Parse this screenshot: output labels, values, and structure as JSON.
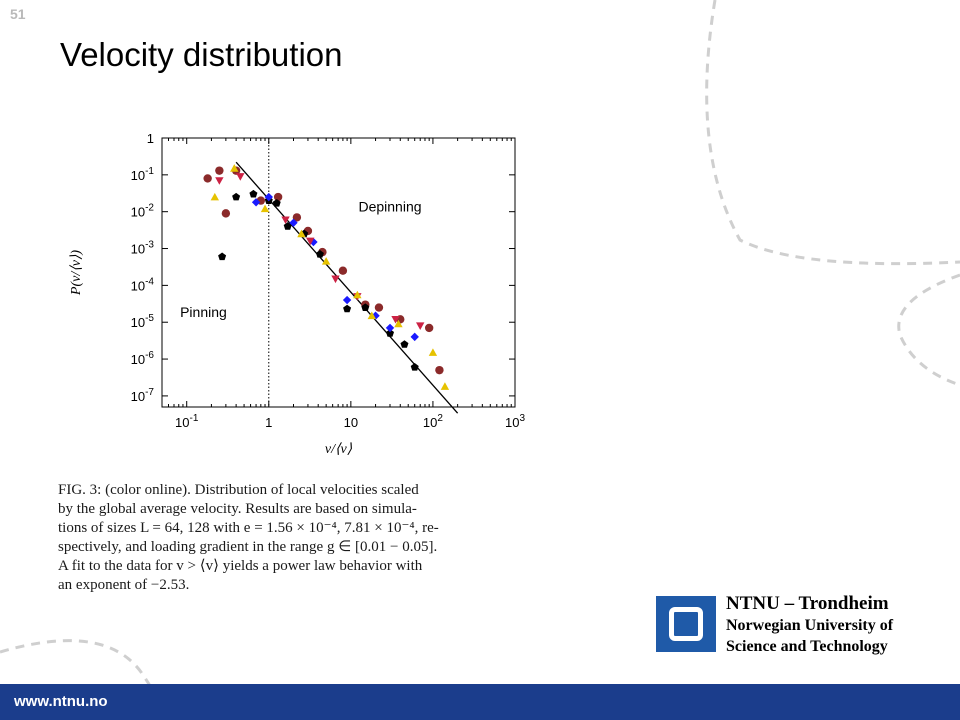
{
  "slide": {
    "page_number": "51",
    "title": "Velocity distribution",
    "footer_url": "www.ntnu.no"
  },
  "brand": {
    "line1": "NTNU – Trondheim",
    "line2": "Norwegian University of",
    "line3": "Science and Technology",
    "logo_color": "#1f5aa8",
    "footer_color": "#1b3d8c"
  },
  "caption": {
    "lines": [
      "FIG. 3: (color online). Distribution of local velocities scaled",
      "by the global average velocity. Results are based on simula-",
      "tions of sizes L = 64, 128 with e = 1.56 × 10⁻⁴, 7.81 × 10⁻⁴, re-",
      "spectively, and loading gradient in the range g ∈ [0.01 − 0.05].",
      "A fit to the data for v > ⟨v⟩ yields a power law behavior with",
      "an exponent of −2.53."
    ]
  },
  "chart_data": {
    "type": "scatter",
    "x_scale": "log",
    "y_scale": "log",
    "xlim": [
      0.05,
      1000
    ],
    "ylim": [
      5e-08,
      1
    ],
    "xlabel": "v/⟨v⟩",
    "ylabel": "P(v/⟨v⟩)",
    "x_ticks": [
      {
        "value": 0.1,
        "base": "10",
        "exp": "-1"
      },
      {
        "value": 1,
        "base": "1",
        "exp": ""
      },
      {
        "value": 10,
        "base": "10",
        "exp": ""
      },
      {
        "value": 100,
        "base": "10",
        "exp": "2"
      },
      {
        "value": 1000,
        "base": "10",
        "exp": "3"
      }
    ],
    "y_ticks": [
      {
        "value": 1,
        "base": "1",
        "exp": ""
      },
      {
        "value": 0.1,
        "base": "10",
        "exp": "-1"
      },
      {
        "value": 0.01,
        "base": "10",
        "exp": "-2"
      },
      {
        "value": 0.001,
        "base": "10",
        "exp": "-3"
      },
      {
        "value": 0.0001,
        "base": "10",
        "exp": "-4"
      },
      {
        "value": 1e-05,
        "base": "10",
        "exp": "-5"
      },
      {
        "value": 1e-06,
        "base": "10",
        "exp": "-6"
      },
      {
        "value": 1e-07,
        "base": "10",
        "exp": "-7"
      }
    ],
    "annotations": [
      {
        "text": "Depinning",
        "x": 30,
        "y": 0.01
      },
      {
        "text": "Pinning",
        "x": 0.16,
        "y": 1.4e-05
      }
    ],
    "vline": {
      "x": 1,
      "style": "dotted"
    },
    "fit": {
      "slope": -2.53,
      "x": [
        0.4,
        200
      ],
      "y": [
        0.22,
        3.39e-08
      ]
    },
    "series": [
      {
        "marker": "circle",
        "color": "#8b2a2a",
        "points": [
          [
            0.18,
            0.08
          ],
          [
            0.25,
            0.13
          ],
          [
            0.3,
            0.009
          ],
          [
            0.4,
            0.13
          ],
          [
            0.8,
            0.02
          ],
          [
            1.3,
            0.025
          ],
          [
            2.2,
            0.007
          ],
          [
            3.0,
            0.003
          ],
          [
            4.5,
            0.0008
          ],
          [
            8,
            0.00025
          ],
          [
            15,
            3e-05
          ],
          [
            22,
            2.5e-05
          ],
          [
            40,
            1.2e-05
          ],
          [
            90,
            7e-06
          ],
          [
            120,
            5e-07
          ]
        ]
      },
      {
        "marker": "pentagon",
        "color": "#000000",
        "points": [
          [
            0.27,
            0.0006
          ],
          [
            0.4,
            0.025
          ],
          [
            0.65,
            0.03
          ],
          [
            1.0,
            0.02
          ],
          [
            1.25,
            0.017
          ],
          [
            1.7,
            0.004
          ],
          [
            2.7,
            0.0025
          ],
          [
            4.2,
            0.0007
          ],
          [
            9,
            2.3e-05
          ],
          [
            15,
            2.5e-05
          ],
          [
            30,
            5e-06
          ],
          [
            45,
            2.5e-06
          ],
          [
            60,
            6e-07
          ]
        ]
      },
      {
        "marker": "diamond",
        "color": "#1a1aff",
        "points": [
          [
            0.7,
            0.018
          ],
          [
            1.0,
            0.025
          ],
          [
            2.0,
            0.005
          ],
          [
            3.5,
            0.0015
          ],
          [
            9,
            4e-05
          ],
          [
            20,
            1.5e-05
          ],
          [
            30,
            7e-06
          ],
          [
            60,
            4e-06
          ]
        ]
      },
      {
        "marker": "triangle-down",
        "color": "#cc2244",
        "points": [
          [
            0.25,
            0.07
          ],
          [
            0.45,
            0.09
          ],
          [
            1.6,
            0.006
          ],
          [
            3.2,
            0.0016
          ],
          [
            6.5,
            0.00015
          ],
          [
            12,
            5e-05
          ],
          [
            35,
            1.2e-05
          ],
          [
            70,
            8e-06
          ]
        ]
      },
      {
        "marker": "triangle-up",
        "color": "#e6c200",
        "points": [
          [
            0.22,
            0.025
          ],
          [
            0.38,
            0.15
          ],
          [
            0.9,
            0.012
          ],
          [
            2.5,
            0.0025
          ],
          [
            5,
            0.00045
          ],
          [
            12,
            5.5e-05
          ],
          [
            18,
            1.5e-05
          ],
          [
            38,
            9e-06
          ],
          [
            100,
            1.5e-06
          ],
          [
            140,
            1.8e-07
          ]
        ]
      }
    ]
  }
}
